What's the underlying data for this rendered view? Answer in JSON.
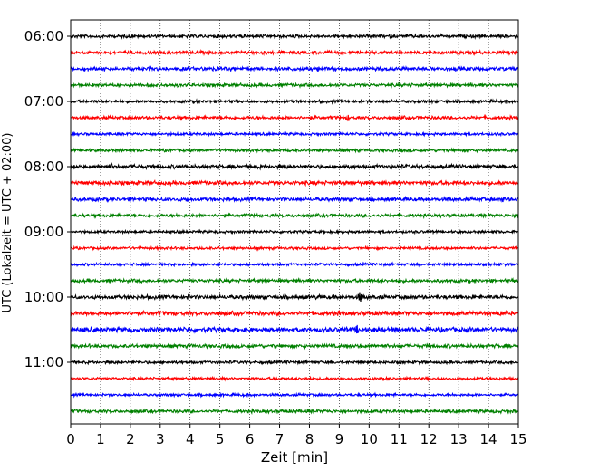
{
  "chart_data": {
    "type": "line",
    "title": "",
    "xlabel": "Zeit  [min]",
    "ylabel": "UTC (Lokalzeit = UTC + 02:00)",
    "xlim": [
      0,
      15
    ],
    "x_ticks": [
      "0",
      "1",
      "2",
      "3",
      "4",
      "5",
      "6",
      "7",
      "8",
      "9",
      "10",
      "11",
      "12",
      "13",
      "14",
      "15"
    ],
    "y_ticks": [
      "06:00",
      "07:00",
      "08:00",
      "09:00",
      "10:00",
      "11:00"
    ],
    "grid": "vertical dotted at each minute",
    "trace_interval_minutes": 15,
    "colors_cycle": [
      "#000000",
      "#ff0000",
      "#0000ff",
      "#008000"
    ],
    "series": [
      {
        "start": "06:00",
        "color": "#000000",
        "amplitude": 0.25
      },
      {
        "start": "06:15",
        "color": "#ff0000",
        "amplitude": 0.25
      },
      {
        "start": "06:30",
        "color": "#0000ff",
        "amplitude": 0.28,
        "events": [
          {
            "t": 4.9,
            "amp": 0.6
          },
          {
            "t": 8.3,
            "amp": 0.7
          }
        ]
      },
      {
        "start": "06:45",
        "color": "#008000",
        "amplitude": 0.25
      },
      {
        "start": "07:00",
        "color": "#000000",
        "amplitude": 0.22
      },
      {
        "start": "07:15",
        "color": "#ff0000",
        "amplitude": 0.25,
        "events": [
          {
            "t": 9.3,
            "amp": 0.7
          }
        ]
      },
      {
        "start": "07:30",
        "color": "#0000ff",
        "amplitude": 0.2
      },
      {
        "start": "07:45",
        "color": "#008000",
        "amplitude": 0.22
      },
      {
        "start": "08:00",
        "color": "#000000",
        "amplitude": 0.3,
        "events": [
          {
            "t": 1.35,
            "amp": 0.8
          },
          {
            "t": 7.5,
            "amp": 0.6
          }
        ]
      },
      {
        "start": "08:15",
        "color": "#ff0000",
        "amplitude": 0.3
      },
      {
        "start": "08:30",
        "color": "#0000ff",
        "amplitude": 0.28,
        "events": [
          {
            "t": 3.9,
            "amp": 0.6
          },
          {
            "t": 14.5,
            "amp": 0.6
          }
        ]
      },
      {
        "start": "08:45",
        "color": "#008000",
        "amplitude": 0.25
      },
      {
        "start": "09:00",
        "color": "#000000",
        "amplitude": 0.2
      },
      {
        "start": "09:15",
        "color": "#ff0000",
        "amplitude": 0.2
      },
      {
        "start": "09:30",
        "color": "#0000ff",
        "amplitude": 0.2
      },
      {
        "start": "09:45",
        "color": "#008000",
        "amplitude": 0.25,
        "events": [
          {
            "t": 11.0,
            "amp": 0.45
          }
        ]
      },
      {
        "start": "10:00",
        "color": "#000000",
        "amplitude": 0.3,
        "events": [
          {
            "t": 9.7,
            "amp": 1.3
          },
          {
            "t": 8.2,
            "amp": 0.5
          }
        ]
      },
      {
        "start": "10:15",
        "color": "#ff0000",
        "amplitude": 0.32,
        "events": [
          {
            "t": 9.0,
            "amp": 0.6
          },
          {
            "t": 14.4,
            "amp": 0.6
          }
        ]
      },
      {
        "start": "10:30",
        "color": "#0000ff",
        "amplitude": 0.35,
        "events": [
          {
            "t": 9.6,
            "amp": 0.9
          },
          {
            "t": 10.3,
            "amp": 0.6
          }
        ]
      },
      {
        "start": "10:45",
        "color": "#008000",
        "amplitude": 0.28
      },
      {
        "start": "11:00",
        "color": "#000000",
        "amplitude": 0.22
      },
      {
        "start": "11:15",
        "color": "#ff0000",
        "amplitude": 0.2
      },
      {
        "start": "11:30",
        "color": "#0000ff",
        "amplitude": 0.2
      },
      {
        "start": "11:45",
        "color": "#008000",
        "amplitude": 0.25
      }
    ]
  }
}
